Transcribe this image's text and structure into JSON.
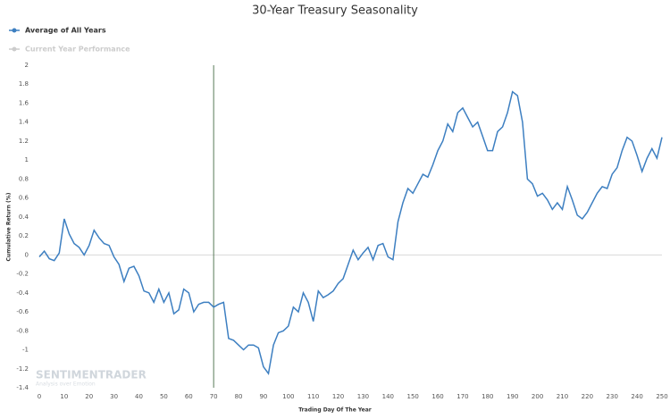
{
  "chart_data": {
    "type": "line",
    "title": "30-Year Treasury Seasonality",
    "x_label": "Trading Day Of The Year",
    "y_label": "Cumulative Return (%)",
    "x": [
      0,
      2,
      4,
      6,
      8,
      10,
      12,
      14,
      16,
      18,
      20,
      22,
      24,
      26,
      28,
      30,
      32,
      34,
      36,
      38,
      40,
      42,
      44,
      46,
      48,
      50,
      52,
      54,
      56,
      58,
      60,
      62,
      64,
      66,
      68,
      70,
      72,
      74,
      76,
      78,
      80,
      82,
      84,
      86,
      88,
      90,
      92,
      94,
      96,
      98,
      100,
      102,
      104,
      106,
      108,
      110,
      112,
      114,
      116,
      118,
      120,
      122,
      124,
      126,
      128,
      130,
      132,
      134,
      136,
      138,
      140,
      142,
      144,
      146,
      148,
      150,
      152,
      154,
      156,
      158,
      160,
      162,
      164,
      166,
      168,
      170,
      172,
      174,
      176,
      178,
      180,
      182,
      184,
      186,
      188,
      190,
      192,
      194,
      196,
      198,
      200,
      202,
      204,
      206,
      208,
      210,
      212,
      214,
      216,
      218,
      220,
      222,
      224,
      226,
      228,
      230,
      232,
      234,
      236,
      238,
      240,
      242,
      244,
      246,
      248,
      250
    ],
    "series": [
      {
        "name": "Average of All Years",
        "color": "#3d7fc1",
        "values": [
          -0.02,
          0.04,
          -0.04,
          -0.06,
          0.02,
          0.38,
          0.22,
          0.12,
          0.08,
          0.0,
          0.1,
          0.26,
          0.18,
          0.12,
          0.1,
          -0.02,
          -0.1,
          -0.28,
          -0.14,
          -0.12,
          -0.22,
          -0.38,
          -0.4,
          -0.5,
          -0.36,
          -0.5,
          -0.4,
          -0.62,
          -0.58,
          -0.36,
          -0.4,
          -0.6,
          -0.52,
          -0.5,
          -0.5,
          -0.55,
          -0.52,
          -0.5,
          -0.88,
          -0.9,
          -0.95,
          -1.0,
          -0.95,
          -0.95,
          -0.98,
          -1.18,
          -1.25,
          -0.95,
          -0.82,
          -0.8,
          -0.75,
          -0.55,
          -0.6,
          -0.4,
          -0.5,
          -0.7,
          -0.38,
          -0.45,
          -0.42,
          -0.38,
          -0.3,
          -0.25,
          -0.1,
          0.05,
          -0.05,
          0.02,
          0.08,
          -0.05,
          0.1,
          0.12,
          -0.02,
          -0.05,
          0.35,
          0.55,
          0.7,
          0.65,
          0.75,
          0.85,
          0.82,
          0.95,
          1.1,
          1.2,
          1.38,
          1.3,
          1.5,
          1.55,
          1.45,
          1.35,
          1.4,
          1.25,
          1.1,
          1.1,
          1.3,
          1.35,
          1.5,
          1.72,
          1.68,
          1.4,
          0.8,
          0.75,
          0.62,
          0.65,
          0.58,
          0.48,
          0.55,
          0.48,
          0.72,
          0.58,
          0.42,
          0.38,
          0.45,
          0.55,
          0.65,
          0.72,
          0.7,
          0.85,
          0.92,
          1.1,
          1.24,
          1.2,
          1.05,
          0.88,
          1.02,
          1.12,
          1.02,
          1.24
        ]
      }
    ],
    "legend_hidden": [
      {
        "name": "Current Year Performance",
        "color": "#cccccc"
      }
    ],
    "vline": 70,
    "vline_color": "#5a7a5a",
    "xlim": [
      0,
      250
    ],
    "xticks": [
      0,
      10,
      20,
      30,
      40,
      50,
      60,
      70,
      80,
      90,
      100,
      110,
      120,
      130,
      140,
      150,
      160,
      170,
      180,
      190,
      200,
      210,
      220,
      230,
      240,
      250
    ],
    "ylim": [
      -1.4,
      2
    ],
    "yticks": [
      2,
      1.8,
      1.6,
      1.4,
      1.2,
      1,
      0.8,
      0.6,
      0.4,
      0.2,
      0,
      -0.2,
      -0.4,
      -0.6,
      -0.8,
      -1,
      -1.2,
      -1.4
    ],
    "watermark": {
      "name": "SENTIMENTRADER",
      "tagline": "Analysis over Emotion"
    }
  }
}
